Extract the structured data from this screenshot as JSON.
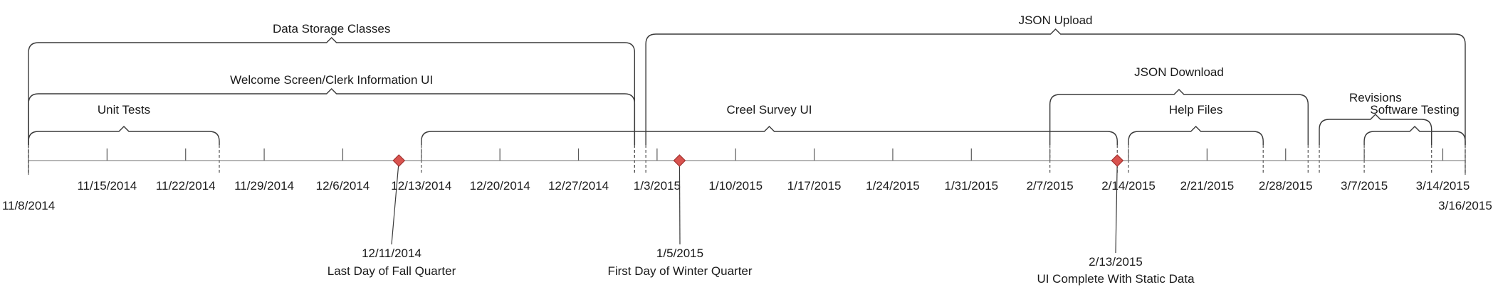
{
  "timeline": {
    "start": "11/8/2014",
    "end": "3/16/2015",
    "start_label": "11/8/2014",
    "end_label": "3/16/2015",
    "ticks": [
      {
        "date": "2014-11-15",
        "label": "11/15/2014"
      },
      {
        "date": "2014-11-22",
        "label": "11/22/2014"
      },
      {
        "date": "2014-11-29",
        "label": "11/29/2014"
      },
      {
        "date": "2014-12-06",
        "label": "12/6/2014"
      },
      {
        "date": "2014-12-13",
        "label": "12/13/2014"
      },
      {
        "date": "2014-12-20",
        "label": "12/20/2014"
      },
      {
        "date": "2014-12-27",
        "label": "12/27/2014"
      },
      {
        "date": "2015-01-03",
        "label": "1/3/2015"
      },
      {
        "date": "2015-01-10",
        "label": "1/10/2015"
      },
      {
        "date": "2015-01-17",
        "label": "1/17/2015"
      },
      {
        "date": "2015-01-24",
        "label": "1/24/2015"
      },
      {
        "date": "2015-01-31",
        "label": "1/31/2015"
      },
      {
        "date": "2015-02-07",
        "label": "2/7/2015"
      },
      {
        "date": "2015-02-14",
        "label": "2/14/2015"
      },
      {
        "date": "2015-02-21",
        "label": "2/21/2015"
      },
      {
        "date": "2015-02-28",
        "label": "2/28/2015"
      },
      {
        "date": "2015-03-07",
        "label": "3/7/2015"
      },
      {
        "date": "2015-03-14",
        "label": "3/14/2015"
      }
    ],
    "tasks": [
      {
        "label": "Data Storage Classes",
        "start": "2014-11-08",
        "end": "2015-01-01"
      },
      {
        "label": "Welcome Screen/Clerk Information UI",
        "start": "2014-11-08",
        "end": "2015-01-01"
      },
      {
        "label": "Unit Tests",
        "start": "2014-11-08",
        "end": "2014-11-25"
      },
      {
        "label": "Creel Survey UI",
        "start": "2014-12-13",
        "end": "2015-02-13"
      },
      {
        "label": "JSON Upload",
        "start": "2015-01-02",
        "end": "2015-03-16"
      },
      {
        "label": "JSON Download",
        "start": "2015-02-07",
        "end": "2015-03-02"
      },
      {
        "label": "Help Files",
        "start": "2015-02-14",
        "end": "2015-02-26"
      },
      {
        "label": "Revisions",
        "start": "2015-03-03",
        "end": "2015-03-13"
      },
      {
        "label": "Software Testing",
        "start": "2015-03-07",
        "end": "2015-03-16"
      }
    ],
    "milestones": [
      {
        "date": "2014-12-11",
        "date_label": "12/11/2014",
        "title": "Last Day of Fall Quarter"
      },
      {
        "date": "2015-01-05",
        "date_label": "1/5/2015",
        "title": "First Day of Winter Quarter"
      },
      {
        "date": "2015-02-13",
        "date_label": "2/13/2015",
        "title": "UI Complete With Static Data"
      }
    ],
    "colors": {
      "milestone": "#d9534f",
      "line": "#3a3a3a",
      "axis": "#8c8c8c"
    }
  }
}
